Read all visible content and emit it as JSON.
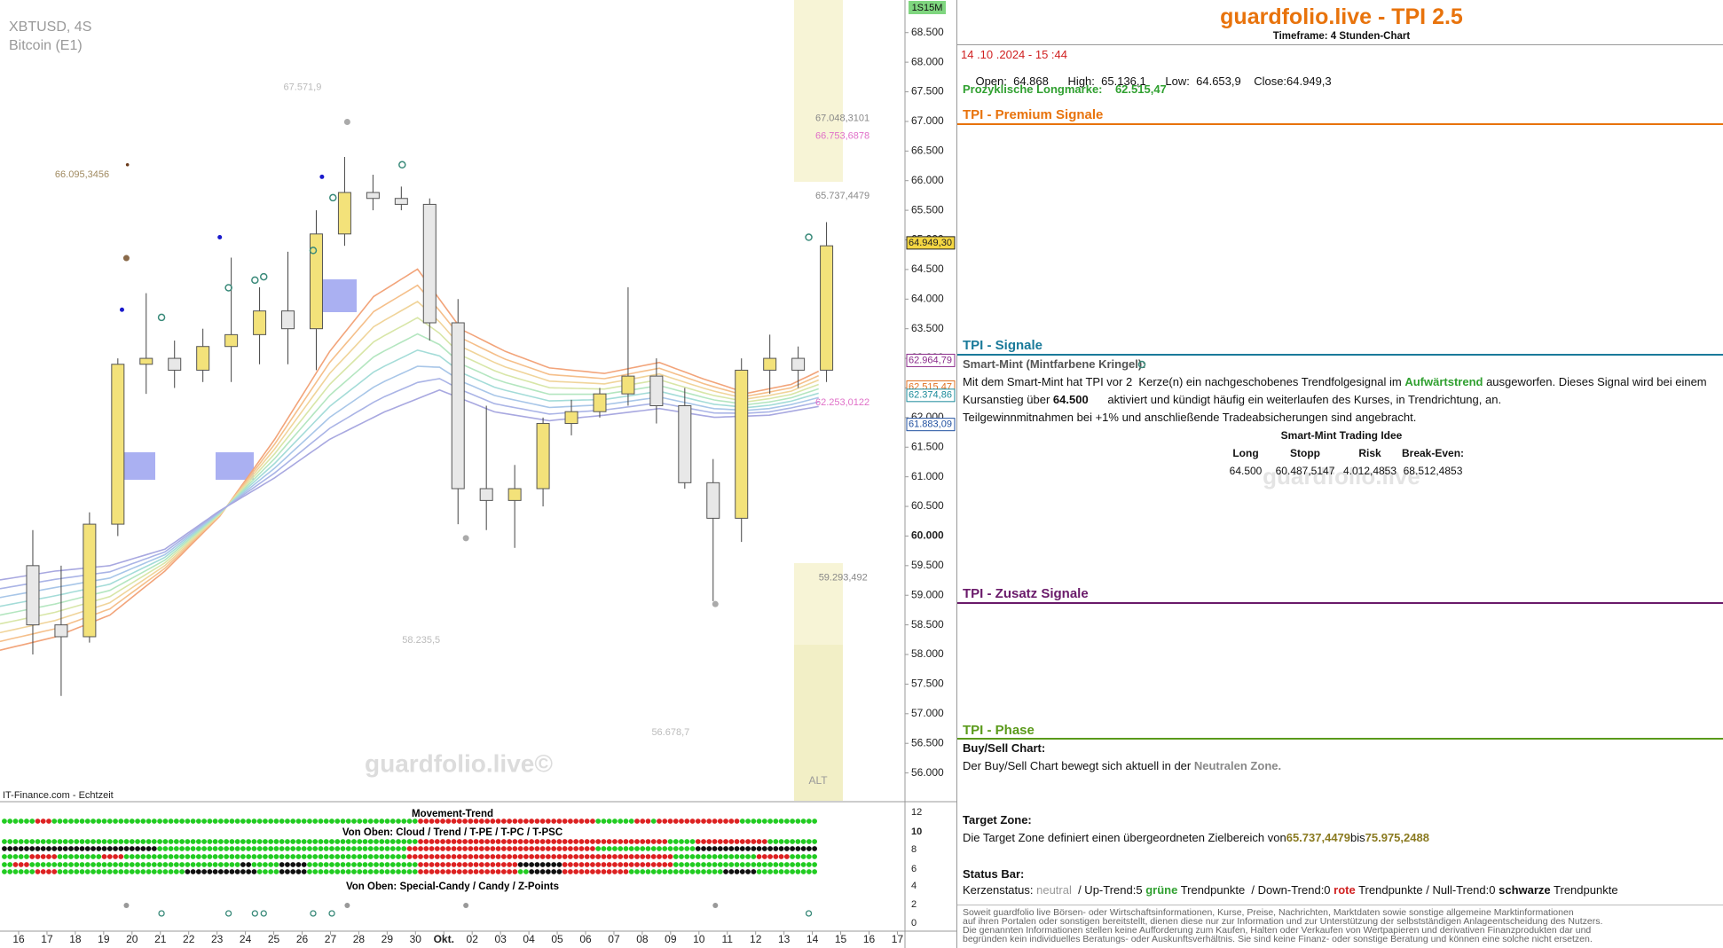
{
  "chart_data": {
    "type": "candlestick",
    "title": "XBTUSD, 4S",
    "subtitle": "Bitcoin (E1)",
    "badge": "1S15M",
    "source": "IT-Finance.com - Echtzeit",
    "watermark": "guardfolio.live©",
    "zone_label": "ALT",
    "categories": [
      "16",
      "17",
      "18",
      "19",
      "20",
      "21",
      "22",
      "23",
      "24",
      "25",
      "26",
      "27",
      "28",
      "29",
      "30",
      "Okt.",
      "02",
      "03",
      "04",
      "05",
      "06",
      "07",
      "08",
      "09",
      "10",
      "11",
      "12",
      "13",
      "14",
      "15",
      "16",
      "17"
    ],
    "open": [
      59500,
      58500,
      58300,
      60200,
      62900,
      63000,
      62800,
      63200,
      63400,
      63800,
      63500,
      65100,
      65800,
      65700,
      65600,
      63600,
      60800,
      60600,
      60800,
      61900,
      62100,
      62400,
      62700,
      62200,
      60900,
      60300,
      62800,
      63000,
      62800,
      null,
      null,
      null
    ],
    "high": [
      60100,
      59500,
      60400,
      63000,
      64100,
      63300,
      63500,
      64700,
      64200,
      64800,
      65500,
      66400,
      66100,
      65900,
      65700,
      64000,
      62200,
      61200,
      62000,
      62300,
      62500,
      64200,
      63000,
      62500,
      61300,
      63000,
      63400,
      63200,
      65300,
      null,
      null,
      null
    ],
    "low": [
      58000,
      57300,
      58200,
      60000,
      62400,
      62500,
      62600,
      62600,
      62900,
      62900,
      62800,
      64900,
      65500,
      65500,
      63300,
      60200,
      60100,
      59800,
      60500,
      61700,
      62000,
      62200,
      61900,
      60800,
      58900,
      59900,
      62400,
      62500,
      62600,
      null,
      null,
      null
    ],
    "close": [
      58500,
      58300,
      60200,
      62900,
      63000,
      62800,
      63200,
      63400,
      63800,
      63500,
      65100,
      65800,
      65700,
      65600,
      63600,
      60800,
      60600,
      60800,
      61900,
      62100,
      62400,
      62700,
      62200,
      60900,
      60300,
      62800,
      63000,
      62800,
      64900,
      null,
      null,
      null
    ],
    "up_color": "#f3e27a",
    "down_color": "#e8e8e8",
    "ylim": [
      55500,
      69050
    ],
    "yticks": [
      {
        "value": 56000,
        "label": "56.000"
      },
      {
        "value": 56500,
        "label": "56.500"
      },
      {
        "value": 57000,
        "label": "57.000"
      },
      {
        "value": 57500,
        "label": "57.500"
      },
      {
        "value": 58000,
        "label": "58.000"
      },
      {
        "value": 58500,
        "label": "58.500"
      },
      {
        "value": 59000,
        "label": "59.000"
      },
      {
        "value": 59500,
        "label": "59.500"
      },
      {
        "value": 60000,
        "label": "60.000"
      },
      {
        "value": 60500,
        "label": "60.500"
      },
      {
        "value": 61000,
        "label": "61.000"
      },
      {
        "value": 61500,
        "label": "61.500"
      },
      {
        "value": 62000,
        "label": "62.000"
      },
      {
        "value": 62500,
        "label": "62.500"
      },
      {
        "value": 63000,
        "label": "63.000"
      },
      {
        "value": 63500,
        "label": "63.500"
      },
      {
        "value": 64000,
        "label": "64.000"
      },
      {
        "value": 64500,
        "label": "64.500"
      },
      {
        "value": 65000,
        "label": "65.000"
      },
      {
        "value": 65500,
        "label": "65.500"
      },
      {
        "value": 66000,
        "label": "66.000"
      },
      {
        "value": 66500,
        "label": "66.500"
      },
      {
        "value": 67000,
        "label": "67.000"
      },
      {
        "value": 67500,
        "label": "67.500"
      },
      {
        "value": 68000,
        "label": "68.000"
      },
      {
        "value": 68500,
        "label": "68.500"
      }
    ],
    "annotations": [
      {
        "value": 67571.9,
        "label": "67.571,9",
        "color": "#bbbbbb"
      },
      {
        "value": 66095.3456,
        "label": "66.095,3456",
        "color": "#a08a60"
      },
      {
        "value": 58235.5,
        "label": "58.235,5",
        "color": "#bbbbbb"
      },
      {
        "value": 56678.7,
        "label": "56.678,7",
        "color": "#bbbbbb"
      },
      {
        "value": 67048.3101,
        "label": "67.048,3101",
        "color": "#888888"
      },
      {
        "value": 66753.6878,
        "label": "66.753,6878",
        "color": "#e070c8"
      },
      {
        "value": 65737.4479,
        "label": "65.737,4479",
        "color": "#888888"
      },
      {
        "value": 62253.0122,
        "label": "62.253,0122",
        "color": "#e070c8"
      },
      {
        "value": 59293.492,
        "label": "59.293,492",
        "color": "#888888"
      }
    ],
    "price_tags": [
      {
        "value": 64949.3,
        "label": "64.949,30",
        "color": "#222222",
        "bg": "#f5d742"
      },
      {
        "value": 62964.79,
        "label": "62.964,79",
        "color": "#8a2a8a",
        "bg": "#ffffff"
      },
      {
        "value": 62515.47,
        "label": "62.515,47",
        "color": "#e07020",
        "bg": "#ffffff"
      },
      {
        "value": 62374.86,
        "label": "62.374,86",
        "color": "#1a8a9a",
        "bg": "#ffffff"
      },
      {
        "value": 61883.09,
        "label": "61.883,09",
        "color": "#2050a0",
        "bg": "#ffffff"
      }
    ],
    "indicator": {
      "titles": [
        "Movement-Trend",
        "Von Oben: Cloud / Trend / T-PE / T-PC / T-PSC",
        "Von Oben: Special-Candy / Candy / Z-Points"
      ],
      "axis": [
        12,
        10,
        8,
        6,
        4,
        2,
        0
      ]
    }
  },
  "panel": {
    "title": "guardfolio.live - TPI 2.5",
    "timeframe": "Timeframe: 4 Stunden-Chart",
    "datetime": "14 .10 .2024 - 15 :44",
    "ohlc": [
      {
        "label": "Open:",
        "value": "64.868"
      },
      {
        "label": "High:",
        "value": "65.136,1"
      },
      {
        "label": "Low:",
        "value": "64.653,9"
      },
      {
        "label": "Close:",
        "value": "64.949,3"
      }
    ],
    "longmark": {
      "label": "Prozyklische Longmarke:",
      "value": "62.515,47"
    },
    "sections": [
      "TPI - Premium Signale",
      "TPI - Signale",
      "TPI - Zusatz Signale",
      "TPI - Phase"
    ],
    "smart_mint": {
      "heading": "Smart-Mint (Mintfarbene Kringel):",
      "lines": [
        [
          "Mit dem Smart-Mint hat TPI vor 2  Kerze(n) ein nachgeschobenes Trendfolgesignal im ",
          "Aufwärtstrend",
          " ausgeworfen. Dieses Signal wird bei einem"
        ],
        [
          "Kursanstieg über ",
          "64.500",
          "      aktiviert und kündigt häufig ein weiterlaufen des Kurses, in Trendrichtung, an."
        ],
        [
          "Teilgewinnmitnahmen bei +1% und anschließende Tradeabsicherungen sind angebracht."
        ]
      ],
      "idea_title": "Smart-Mint Trading Idee",
      "columns": [
        "Long",
        "Stopp",
        "Risk",
        "Break-Even:"
      ],
      "row": [
        "64.500",
        "60.487,5147",
        "4.012,4853",
        "68.512,4853"
      ],
      "watermark": "guardfolio.live"
    },
    "phase": {
      "buysell_title": "Buy/Sell Chart:",
      "buysell": [
        "Der Buy/Sell Chart bewegt sich aktuell in der ",
        "Neutralen Zone."
      ],
      "target_title": "Target Zone:",
      "target": [
        "Die Target Zone definiert einen übergeordneten Zielbereich von",
        "65.737,4479",
        "bis",
        "75.975,2488"
      ],
      "status_title": "Status Bar:",
      "status": [
        "Kerzenstatus: ",
        "neutral",
        "  / Up-Trend:5 ",
        "grüne",
        " Trendpunkte  / Down-Trend:0 ",
        "rote",
        " Trendpunkte / Null-Trend:0 ",
        "schwarze",
        " Trendpunkte"
      ]
    },
    "disclaimer": [
      "Soweit guardfolio live Börsen- oder Wirtschaftsinformationen, Kurse, Preise, Nachrichten, Marktdaten sowie sonstige allgemeine Marktinformationen",
      "auf ihren Portalen oder sonstigen bereitstellt, dienen diese nur zur Information und zur Unterstützung der selbstständigen Anlageentscheidung des Nutzers.",
      "Die genannten Informationen stellen keine Aufforderung zum Kaufen, Halten oder Verkaufen von Wertpapieren und derivativen Finanzprodukten dar und",
      "begründen kein individuelles Beratungs- oder Auskunftsverhältnis. Sie sind keine Finanz- oder sonstige Beratung und können eine solche nicht ersetzen."
    ]
  }
}
